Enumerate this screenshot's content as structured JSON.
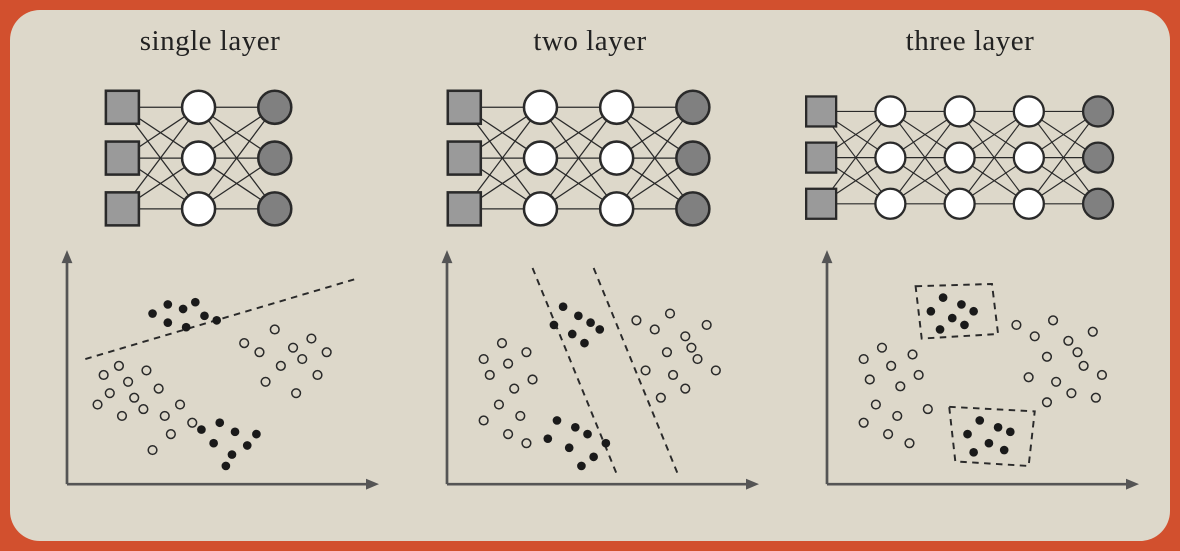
{
  "background_color": "#d2502e",
  "frame_background": "#ddd8ca",
  "frame_border_radius": 30,
  "stroke_color": "#2a2a2a",
  "input_fill": "#9a9a9a",
  "hidden_fill": "#ffffff",
  "output_fill": "#808080",
  "node_stroke_width": 2,
  "edge_stroke_width": 1,
  "node_radius": 13,
  "square_size": 26,
  "row_gap": 40,
  "col_gap": 60,
  "title_fontsize": 29,
  "title_color": "#222222",
  "scatter_axis_color": "#555555",
  "scatter_axis_width": 2.5,
  "scatter_point_radius": 4,
  "scatter_fill_dark": "#1a1a1a",
  "scatter_fill_light_stroke": "#2a2a2a",
  "scatter_dash": "6,5",
  "panels": [
    {
      "title": "single layer",
      "layers": [
        {
          "type": "input",
          "count": 3
        },
        {
          "type": "hidden",
          "count": 3
        },
        {
          "type": "output",
          "count": 3
        }
      ],
      "scatter": {
        "xlim": [
          0,
          100
        ],
        "ylim": [
          0,
          100
        ],
        "dark_points": [
          [
            28,
            75
          ],
          [
            33,
            79
          ],
          [
            38,
            77
          ],
          [
            33,
            71
          ],
          [
            39,
            69
          ],
          [
            45,
            74
          ],
          [
            42,
            80
          ],
          [
            49,
            72
          ],
          [
            44,
            24
          ],
          [
            50,
            27
          ],
          [
            55,
            23
          ],
          [
            48,
            18
          ],
          [
            54,
            13
          ],
          [
            59,
            17
          ],
          [
            62,
            22
          ],
          [
            52,
            8
          ]
        ],
        "open_points": [
          [
            12,
            48
          ],
          [
            17,
            52
          ],
          [
            14,
            40
          ],
          [
            20,
            45
          ],
          [
            22,
            38
          ],
          [
            26,
            50
          ],
          [
            30,
            42
          ],
          [
            25,
            33
          ],
          [
            32,
            30
          ],
          [
            37,
            35
          ],
          [
            34,
            22
          ],
          [
            41,
            27
          ],
          [
            28,
            15
          ],
          [
            18,
            30
          ],
          [
            10,
            35
          ],
          [
            58,
            62
          ],
          [
            63,
            58
          ],
          [
            68,
            68
          ],
          [
            74,
            60
          ],
          [
            70,
            52
          ],
          [
            77,
            55
          ],
          [
            80,
            64
          ],
          [
            85,
            58
          ],
          [
            65,
            45
          ],
          [
            75,
            40
          ],
          [
            82,
            48
          ]
        ],
        "boundaries": [
          {
            "type": "line",
            "points": [
              [
                6,
                55
              ],
              [
                94,
                90
              ]
            ]
          }
        ]
      }
    },
    {
      "title": "two layer",
      "layers": [
        {
          "type": "input",
          "count": 3
        },
        {
          "type": "hidden",
          "count": 3
        },
        {
          "type": "hidden",
          "count": 3
        },
        {
          "type": "output",
          "count": 3
        }
      ],
      "scatter": {
        "xlim": [
          0,
          100
        ],
        "ylim": [
          0,
          100
        ],
        "dark_points": [
          [
            38,
            78
          ],
          [
            43,
            74
          ],
          [
            35,
            70
          ],
          [
            41,
            66
          ],
          [
            47,
            71
          ],
          [
            45,
            62
          ],
          [
            50,
            68
          ],
          [
            36,
            28
          ],
          [
            42,
            25
          ],
          [
            33,
            20
          ],
          [
            40,
            16
          ],
          [
            46,
            22
          ],
          [
            48,
            12
          ],
          [
            52,
            18
          ],
          [
            44,
            8
          ]
        ],
        "open_points": [
          [
            12,
            55
          ],
          [
            18,
            62
          ],
          [
            14,
            48
          ],
          [
            20,
            53
          ],
          [
            22,
            42
          ],
          [
            26,
            58
          ],
          [
            28,
            46
          ],
          [
            17,
            35
          ],
          [
            24,
            30
          ],
          [
            12,
            28
          ],
          [
            20,
            22
          ],
          [
            26,
            18
          ],
          [
            62,
            72
          ],
          [
            68,
            68
          ],
          [
            73,
            75
          ],
          [
            78,
            65
          ],
          [
            72,
            58
          ],
          [
            80,
            60
          ],
          [
            85,
            70
          ],
          [
            65,
            50
          ],
          [
            74,
            48
          ],
          [
            82,
            55
          ],
          [
            88,
            50
          ],
          [
            70,
            38
          ],
          [
            78,
            42
          ]
        ],
        "boundaries": [
          {
            "type": "line",
            "points": [
              [
                28,
                95
              ],
              [
                56,
                3
              ]
            ]
          },
          {
            "type": "line",
            "points": [
              [
                48,
                95
              ],
              [
                76,
                3
              ]
            ]
          }
        ]
      }
    },
    {
      "title": "three layer",
      "layers": [
        {
          "type": "input",
          "count": 3
        },
        {
          "type": "hidden",
          "count": 3
        },
        {
          "type": "hidden",
          "count": 3
        },
        {
          "type": "hidden",
          "count": 3
        },
        {
          "type": "output",
          "count": 3
        }
      ],
      "scatter": {
        "xlim": [
          0,
          100
        ],
        "ylim": [
          0,
          100
        ],
        "dark_points": [
          [
            38,
            82
          ],
          [
            44,
            79
          ],
          [
            34,
            76
          ],
          [
            41,
            73
          ],
          [
            48,
            76
          ],
          [
            37,
            68
          ],
          [
            45,
            70
          ],
          [
            50,
            28
          ],
          [
            56,
            25
          ],
          [
            46,
            22
          ],
          [
            53,
            18
          ],
          [
            60,
            23
          ],
          [
            48,
            14
          ],
          [
            58,
            15
          ]
        ],
        "open_points": [
          [
            12,
            55
          ],
          [
            18,
            60
          ],
          [
            14,
            46
          ],
          [
            21,
            52
          ],
          [
            24,
            43
          ],
          [
            28,
            57
          ],
          [
            30,
            48
          ],
          [
            16,
            35
          ],
          [
            23,
            30
          ],
          [
            12,
            27
          ],
          [
            20,
            22
          ],
          [
            27,
            18
          ],
          [
            33,
            33
          ],
          [
            62,
            70
          ],
          [
            68,
            65
          ],
          [
            74,
            72
          ],
          [
            79,
            63
          ],
          [
            72,
            56
          ],
          [
            82,
            58
          ],
          [
            87,
            67
          ],
          [
            66,
            47
          ],
          [
            75,
            45
          ],
          [
            84,
            52
          ],
          [
            90,
            48
          ],
          [
            72,
            36
          ],
          [
            80,
            40
          ],
          [
            88,
            38
          ]
        ],
        "boundaries": [
          {
            "type": "polygon",
            "points": [
              [
                29,
                87
              ],
              [
                54,
                88
              ],
              [
                56,
                66
              ],
              [
                31,
                64
              ]
            ]
          },
          {
            "type": "polygon",
            "points": [
              [
                40,
                34
              ],
              [
                68,
                32
              ],
              [
                66,
                8
              ],
              [
                42,
                10
              ]
            ]
          }
        ]
      }
    }
  ]
}
